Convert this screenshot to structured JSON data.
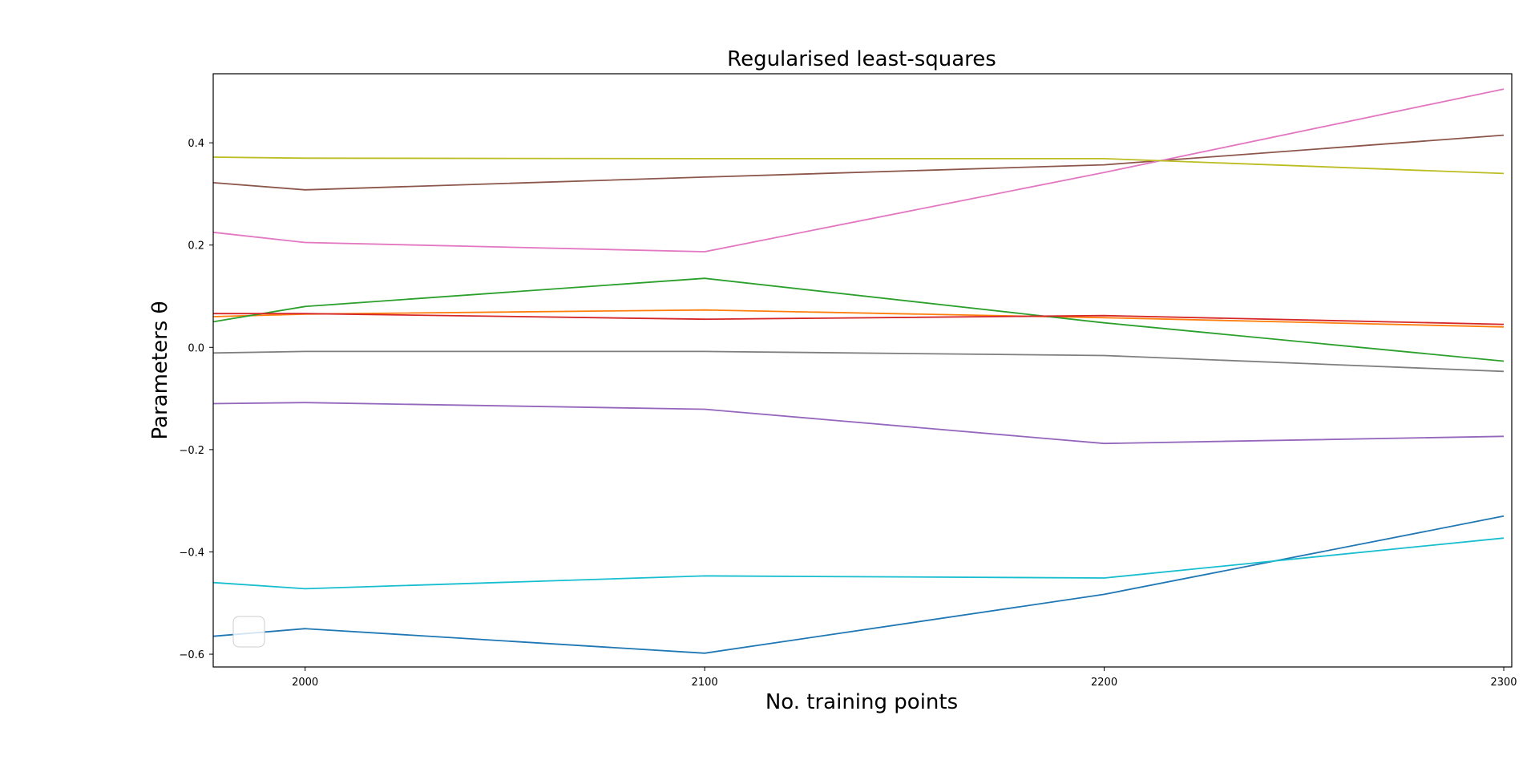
{
  "chart_data": {
    "type": "line",
    "title": "Regularised least-squares",
    "xlabel": "No. training points",
    "ylabel": "Parameters θ",
    "xlim": [
      1977,
      2302
    ],
    "ylim": [
      -0.625,
      0.535
    ],
    "xticks": [
      2000,
      2100,
      2200,
      2300
    ],
    "yticks": [
      -0.6,
      -0.4,
      -0.2,
      0.0,
      0.2,
      0.4
    ],
    "ytick_labels": [
      "−0.6",
      "−0.4",
      "−0.2",
      "0.0",
      "0.2",
      "0.4"
    ],
    "grid": false,
    "legend": {
      "placement": "lower-left",
      "entries": []
    },
    "x": [
      1977,
      2000,
      2100,
      2200,
      2300
    ],
    "series": [
      {
        "color": "#1f77b4",
        "values": [
          -0.565,
          -0.55,
          -0.598,
          -0.483,
          -0.33
        ]
      },
      {
        "color": "#ff7f0e",
        "values": [
          0.06,
          0.065,
          0.073,
          0.058,
          0.04
        ]
      },
      {
        "color": "#2ca02c",
        "values": [
          0.05,
          0.08,
          0.135,
          0.048,
          -0.027
        ]
      },
      {
        "color": "#d62728",
        "values": [
          0.066,
          0.066,
          0.055,
          0.062,
          0.045
        ]
      },
      {
        "color": "#9467bd",
        "values": [
          -0.11,
          -0.108,
          -0.121,
          -0.188,
          -0.174
        ]
      },
      {
        "color": "#8c564b",
        "values": [
          0.322,
          0.308,
          0.333,
          0.357,
          0.415
        ]
      },
      {
        "color": "#e377c2",
        "values": [
          0.225,
          0.205,
          0.187,
          0.342,
          0.505
        ]
      },
      {
        "color": "#7f7f7f",
        "values": [
          -0.011,
          -0.008,
          -0.008,
          -0.016,
          -0.047
        ]
      },
      {
        "color": "#bcbd22",
        "values": [
          0.372,
          0.37,
          0.369,
          0.369,
          0.34
        ]
      },
      {
        "color": "#17becf",
        "values": [
          -0.46,
          -0.472,
          -0.447,
          -0.451,
          -0.373
        ]
      }
    ]
  }
}
